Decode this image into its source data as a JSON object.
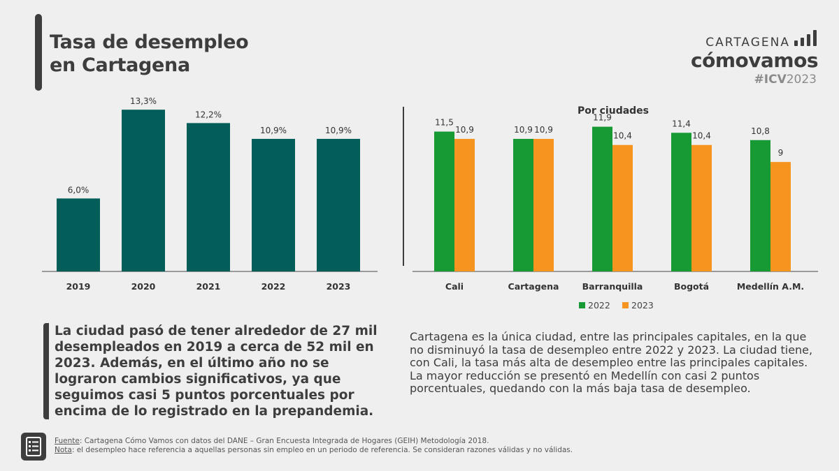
{
  "header": {
    "title_line1": "Tasa de desempleo",
    "title_line2": "en Cartagena"
  },
  "brand": {
    "top": "CARTAGENA",
    "main": "cómovamos",
    "tag_bold": "#ICV",
    "tag_year": "2023"
  },
  "colors": {
    "teal": "#035e5a",
    "green": "#179933",
    "orange": "#f5951f",
    "dark": "#3d3d3d"
  },
  "chart_data": [
    {
      "type": "bar",
      "title": "",
      "categories": [
        "2019",
        "2020",
        "2021",
        "2022",
        "2023"
      ],
      "values": [
        6.0,
        13.3,
        12.2,
        10.9,
        10.9
      ],
      "labels": [
        "6,0%",
        "13,3%",
        "12,2%",
        "10,9%",
        "10,9%"
      ],
      "xlabel": "",
      "ylabel": "",
      "ylim": [
        0,
        14
      ],
      "grid": false
    },
    {
      "type": "bar",
      "title": "Por ciudades",
      "categories": [
        "Cali",
        "Cartagena",
        "Barranquilla",
        "Bogotá",
        "Medellín A.M."
      ],
      "series": [
        {
          "name": "2022",
          "values": [
            11.5,
            10.9,
            11.9,
            11.4,
            10.8
          ],
          "labels": [
            "11,5",
            "10,9",
            "11,9",
            "11,4",
            "10,8"
          ]
        },
        {
          "name": "2023",
          "values": [
            10.9,
            10.9,
            10.4,
            10.4,
            9
          ],
          "labels": [
            "10,9",
            "10,9",
            "10,4",
            "10,4",
            "9"
          ]
        }
      ],
      "xlabel": "",
      "ylabel": "",
      "ylim": [
        0,
        14
      ],
      "legend": "bottom",
      "grid": false
    }
  ],
  "text": {
    "left": "La ciudad pasó de tener alrededor de 27 mil desempleados en 2019 a cerca de 52 mil en 2023. Además, en el último año no se lograron cambios significativos, ya que seguimos casi 5 puntos porcentuales por encima de lo registrado en la prepandemia.",
    "right": "Cartagena es la única ciudad, entre las principales capitales, en la que no disminuyó la tasa de desempleo entre 2022 y 2023. La ciudad tiene, con Cali, la tasa más alta de desempleo entre las principales capitales. La mayor reducción se presentó en Medellín con casi 2 puntos porcentuales, quedando con la más baja tasa de desempleo."
  },
  "footer": {
    "fuente_label": "Fuente",
    "fuente_text": ": Cartagena Cómo Vamos con datos del DANE – Gran Encuesta Integrada de Hogares (GEIH) Metodología 2018.",
    "nota_label": "Nota",
    "nota_text": ": el desempleo hace referencia a aquellas personas sin empleo en un periodo de referencia. Se consideran razones válidas y no válidas.",
    "icon": "document-list-icon"
  }
}
